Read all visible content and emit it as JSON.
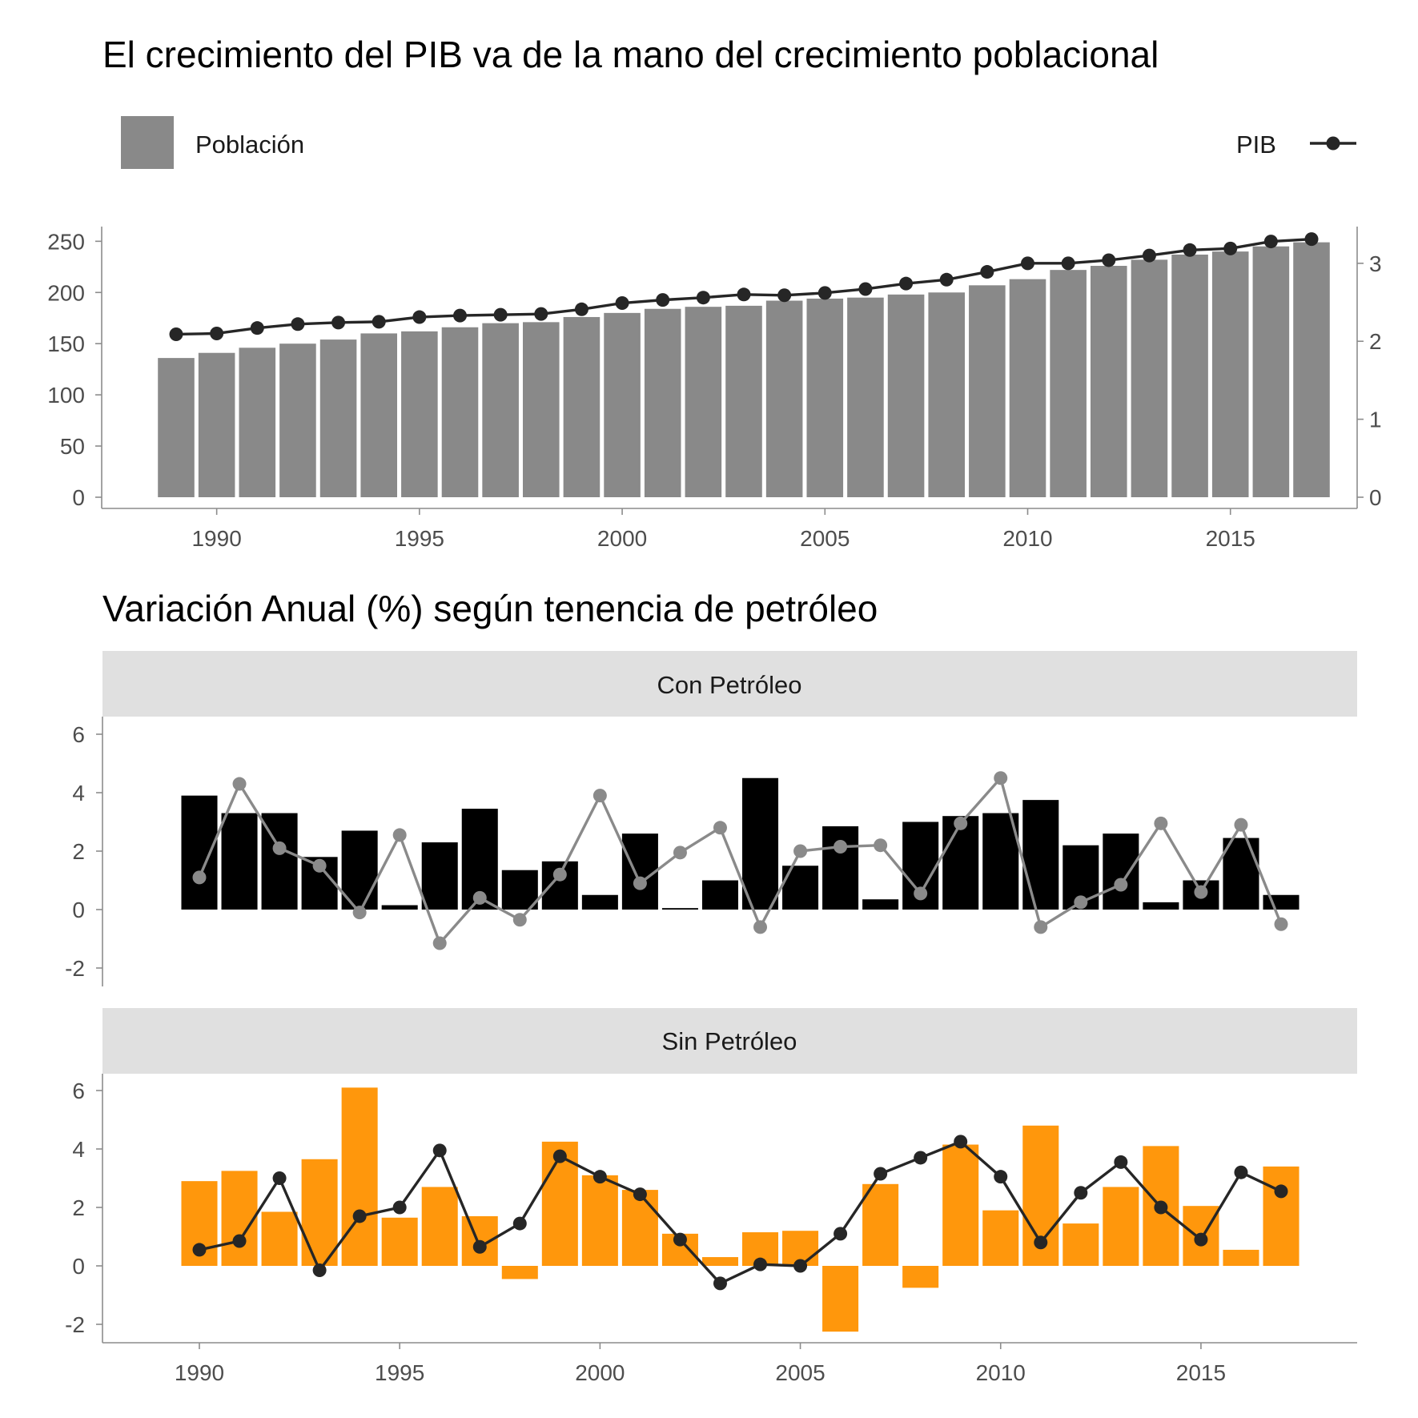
{
  "chart_data": [
    {
      "type": "bar+line",
      "title": "El crecimiento del PIB va de la mano del crecimiento poblacional",
      "legend": {
        "bar_label": "Población",
        "line_label": "PIB",
        "placement": "top"
      },
      "x": [
        1989,
        1990,
        1991,
        1992,
        1993,
        1994,
        1995,
        1996,
        1997,
        1998,
        1999,
        2000,
        2001,
        2002,
        2003,
        2004,
        2005,
        2006,
        2007,
        2008,
        2009,
        2010,
        2011,
        2012,
        2013,
        2014,
        2015,
        2016,
        2017
      ],
      "x_ticks": [
        "1990",
        "1995",
        "2000",
        "2005",
        "2010",
        "2015"
      ],
      "series": [
        {
          "name": "Población",
          "type": "bar",
          "axis": "left",
          "values": [
            136,
            141,
            146,
            150,
            154,
            160,
            162,
            166,
            170,
            171,
            176,
            180,
            184,
            186,
            187,
            192,
            194,
            195,
            198,
            200,
            207,
            213,
            222,
            226,
            232,
            237,
            240,
            245,
            249
          ]
        },
        {
          "name": "PIB",
          "type": "line",
          "axis": "right",
          "values": [
            2.09,
            2.1,
            2.17,
            2.22,
            2.24,
            2.25,
            2.31,
            2.33,
            2.34,
            2.35,
            2.41,
            2.49,
            2.53,
            2.56,
            2.6,
            2.59,
            2.62,
            2.67,
            2.74,
            2.79,
            2.89,
            3.0,
            3.0,
            3.04,
            3.1,
            3.17,
            3.19,
            3.28,
            3.31
          ]
        }
      ],
      "y_left": {
        "ticks": [
          "0",
          "50",
          "100",
          "150",
          "200",
          "250"
        ],
        "lim": [
          0,
          262
        ]
      },
      "y_right": {
        "ticks": [
          "0",
          "1",
          "2",
          "3"
        ],
        "lim": [
          0,
          3.44
        ]
      },
      "colors": {
        "bar": "#898989",
        "line": "#262626"
      }
    },
    {
      "type": "bar+line",
      "title": "Variación Anual (%) según tenencia de petróleo",
      "x": [
        1990,
        1991,
        1992,
        1993,
        1994,
        1995,
        1996,
        1997,
        1998,
        1999,
        2000,
        2001,
        2002,
        2003,
        2004,
        2005,
        2006,
        2007,
        2008,
        2009,
        2010,
        2011,
        2012,
        2013,
        2014,
        2015,
        2016,
        2017
      ],
      "x_ticks": [
        "1990",
        "1995",
        "2000",
        "2005",
        "2010",
        "2015"
      ],
      "y_ticks": [
        "6",
        "4",
        "2",
        "0",
        "-2"
      ],
      "ylim": [
        -2.6,
        6.5
      ],
      "panels": [
        {
          "label": "Con Petróleo",
          "bar_color": "#000000",
          "line_color": "#8a8a8a",
          "bars": [
            3.9,
            3.3,
            3.3,
            1.8,
            2.7,
            0.15,
            2.3,
            3.45,
            1.35,
            1.65,
            0.5,
            2.6,
            0.05,
            1.0,
            4.5,
            1.5,
            2.85,
            0.35,
            3.0,
            3.2,
            3.3,
            3.75,
            2.2,
            2.6,
            0.25,
            1.0,
            2.45,
            0.5
          ],
          "line": [
            1.1,
            4.3,
            2.1,
            1.5,
            -0.1,
            2.55,
            -1.15,
            0.4,
            -0.35,
            1.2,
            3.9,
            0.9,
            1.95,
            2.8,
            -0.6,
            2.0,
            2.15,
            2.2,
            0.55,
            2.95,
            4.5,
            -0.6,
            0.25,
            0.85,
            2.95,
            0.6,
            2.9,
            -0.5
          ]
        },
        {
          "label": "Sin Petróleo",
          "bar_color": "#ff970c",
          "line_color": "#262626",
          "bars": [
            2.9,
            3.25,
            1.85,
            3.65,
            6.1,
            1.65,
            2.7,
            1.7,
            -0.45,
            4.25,
            3.1,
            2.6,
            1.1,
            0.3,
            1.15,
            1.2,
            -2.25,
            2.8,
            -0.75,
            4.15,
            1.9,
            4.8,
            1.45,
            2.7,
            4.1,
            2.05,
            0.55,
            3.4
          ],
          "line": [
            0.55,
            0.85,
            3.0,
            -0.15,
            1.7,
            2.0,
            3.95,
            0.65,
            1.45,
            3.75,
            3.05,
            2.45,
            0.9,
            -0.6,
            0.05,
            0.0,
            1.1,
            3.15,
            3.7,
            4.25,
            3.05,
            0.8,
            2.5,
            3.55,
            2.0,
            0.9,
            3.2,
            2.55
          ]
        }
      ]
    }
  ]
}
